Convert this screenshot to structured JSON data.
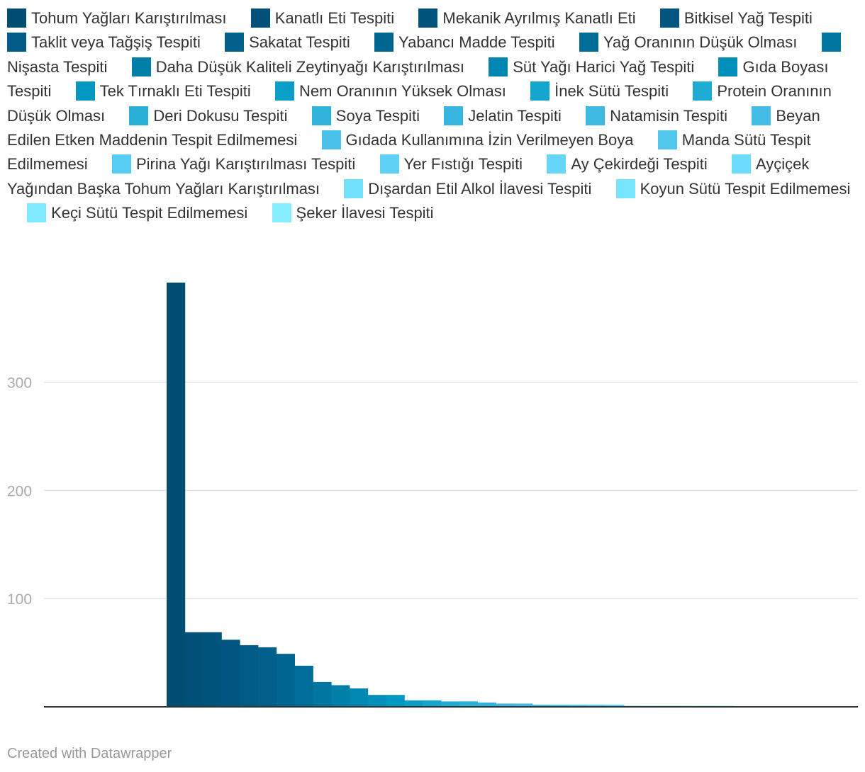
{
  "chart_data": {
    "type": "bar",
    "title": "",
    "xlabel": "",
    "ylabel": "",
    "ylim": [
      0,
      392
    ],
    "yticks": [
      100,
      200,
      300
    ],
    "legend_position": "top",
    "grid": true,
    "categories": [
      "Tohum Yağları Karıştırılması",
      "Kanatlı Eti Tespiti",
      "Mekanik Ayrılmış Kanatlı Eti",
      "Bitkisel Yağ Tespiti",
      "Taklit veya Tağşiş Tespiti",
      "Sakatat Tespiti",
      "Yabancı Madde Tespiti",
      "Yağ Oranının Düşük Olması",
      "Nişasta Tespiti",
      "Daha Düşük Kaliteli Zeytinyağı Karıştırılması",
      "Süt Yağı Harici Yağ Tespiti",
      "Gıda Boyası Tespiti",
      "Tek Tırnaklı Eti Tespiti",
      "Nem Oranının Yüksek Olması",
      "İnek Sütü Tespiti",
      "Protein Oranının Düşük Olması",
      "Deri Dokusu Tespiti",
      "Soya Tespiti",
      "Jelatin Tespiti",
      "Natamisin Tespiti",
      "Beyan Edilen Etken Maddenin Tespit Edilmemesi",
      "Gıdada Kullanımına İzin Verilmeyen Boya",
      "Manda Sütü Tespit Edilmemesi",
      "Pirina Yağı Karıştırılması Tespiti",
      "Yer Fıstığı Tespiti",
      "Ay Çekirdeği Tespiti",
      "Ayçiçek Yağından Başka Tohum Yağları Karıştırılması",
      "Dışardan Etil Alkol İlavesi Tespiti",
      "Koyun Sütü Tespit Edilmemesi",
      "Keçi Sütü Tespit Edilmemesi",
      "Şeker İlavesi Tespiti"
    ],
    "values": [
      392,
      69,
      69,
      62,
      57,
      55,
      49,
      38,
      23,
      20,
      17,
      11,
      11,
      6,
      6,
      5,
      5,
      4,
      3,
      3,
      2,
      2,
      2,
      2,
      2,
      1,
      1,
      1,
      1,
      1,
      1
    ],
    "colors": [
      "#004d72",
      "#005077",
      "#00537b",
      "#005680",
      "#005b86",
      "#005f8b",
      "#006591",
      "#006c98",
      "#00759f",
      "#007fa8",
      "#0087b1",
      "#008fb9",
      "#0097c1",
      "#0b9fc8",
      "#15a6cf",
      "#1eacd4",
      "#29b0d9",
      "#30b3dc",
      "#37b6df",
      "#3eb9e2",
      "#44bde6",
      "#4bc2ea",
      "#52c7ee",
      "#58ccf2",
      "#5fd1f6",
      "#66d7fa",
      "#6cdcfc",
      "#72e1fd",
      "#78e5fe",
      "#7ee9ff",
      "#86eefe"
    ]
  },
  "footer": {
    "credit": "Created with Datawrapper"
  }
}
